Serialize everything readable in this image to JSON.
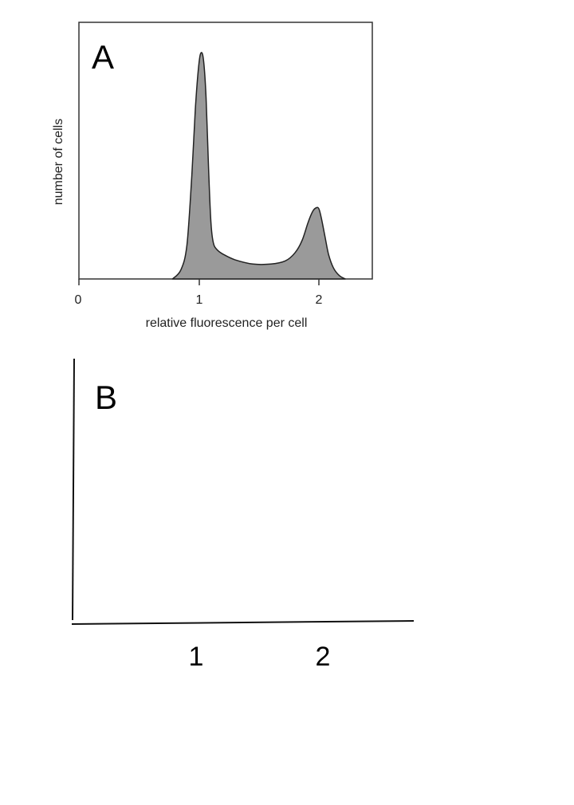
{
  "chart_data": [
    {
      "type": "area",
      "panel_label": "A",
      "title": "",
      "xlabel": "relative fluorescence per cell",
      "ylabel": "number of cells",
      "xlim": [
        0,
        2.45
      ],
      "ylim": [
        0,
        1.0
      ],
      "xticks": [
        "0",
        "1",
        "2"
      ],
      "grid": false,
      "fill_color": "#9a9a9a",
      "series": [
        {
          "x": [
            0.78,
            0.85,
            0.9,
            0.94,
            0.97,
            1.0,
            1.02,
            1.04,
            1.06,
            1.08,
            1.1,
            1.12,
            1.15,
            1.2,
            1.3,
            1.45,
            1.6,
            1.72,
            1.8,
            1.86,
            1.91,
            1.95,
            1.98,
            2.0,
            2.02,
            2.05,
            2.08,
            2.12,
            2.17,
            2.22
          ],
          "y": [
            0.0,
            0.04,
            0.15,
            0.45,
            0.75,
            0.95,
            1.0,
            0.96,
            0.8,
            0.5,
            0.25,
            0.16,
            0.13,
            0.11,
            0.085,
            0.066,
            0.066,
            0.08,
            0.115,
            0.17,
            0.25,
            0.3,
            0.315,
            0.31,
            0.27,
            0.19,
            0.11,
            0.05,
            0.015,
            0.0
          ]
        }
      ]
    },
    {
      "type": "area",
      "panel_label": "B",
      "title": "",
      "xlabel": "",
      "ylabel": "",
      "xticks": [
        "1",
        "2"
      ],
      "grid": false,
      "series": []
    }
  ]
}
